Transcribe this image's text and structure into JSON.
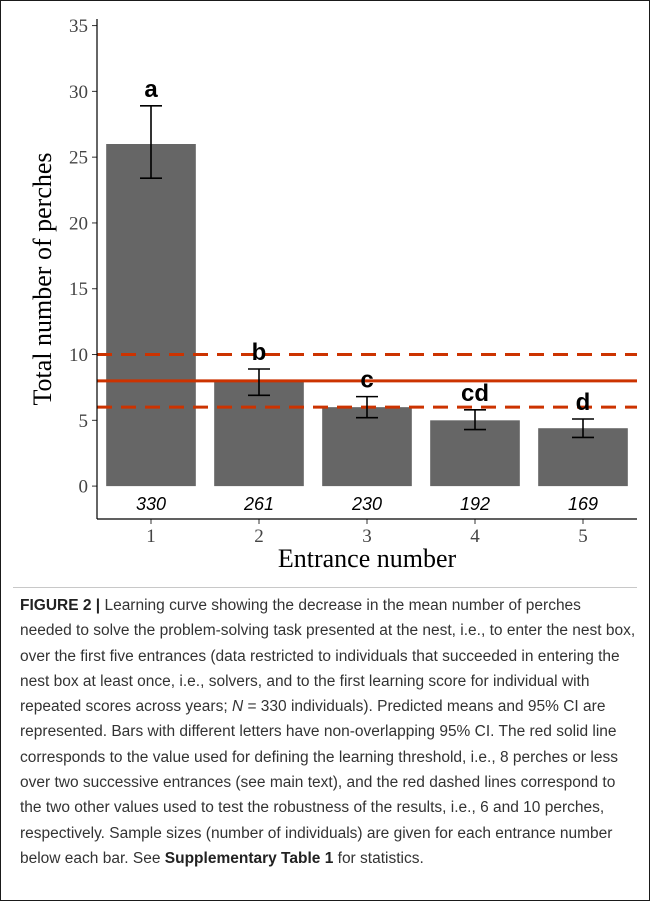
{
  "chart_data": {
    "type": "bar",
    "categories": [
      "1",
      "2",
      "3",
      "4",
      "5"
    ],
    "values": [
      26,
      8,
      6,
      5,
      4.4
    ],
    "ci_lower": [
      23.4,
      6.9,
      5.2,
      4.3,
      3.7
    ],
    "ci_upper": [
      28.9,
      8.9,
      6.8,
      5.8,
      5.1
    ],
    "significance_letters": [
      "a",
      "b",
      "c",
      "cd",
      "d"
    ],
    "sample_sizes": [
      "330",
      "261",
      "230",
      "192",
      "169"
    ],
    "xlabel": "Entrance number",
    "ylabel": "Total number of perches",
    "ylim": [
      -2.5,
      35.5
    ],
    "yticks": [
      0,
      5,
      10,
      15,
      20,
      25,
      30,
      35
    ],
    "reference_lines": [
      {
        "value": 8,
        "style": "solid",
        "color": "#cc3300"
      },
      {
        "value": 6,
        "style": "dashed",
        "color": "#cc3300"
      },
      {
        "value": 10,
        "style": "dashed",
        "color": "#cc3300"
      }
    ],
    "bar_color": "#666666",
    "grid": false
  },
  "caption": {
    "label": "FIGURE 2 |",
    "text_before": " Learning curve showing the decrease in the mean number of perches needed to solve the problem-solving task presented at the nest, i.e., to enter the nest box, over the first five entrances (data restricted to individuals that succeeded in entering the nest box at least once, i.e., solvers, and to the first learning score for individual with repeated scores across years; ",
    "n_symbol": "N",
    "text_after_n": " = 330 individuals). Predicted means and 95% CI are represented. Bars with different letters have non-overlapping 95% CI. The red solid line corresponds to the value used for defining the learning threshold, i.e., 8 perches or less over two successive entrances (see main text), and the red dashed lines correspond to the two other values used to test the robustness of the results, i.e., 6 and 10 perches, respectively. Sample sizes (number of individuals) are given for each entrance number below each bar. See ",
    "link_text": "Supplementary Table 1",
    "text_end": " for statistics."
  }
}
